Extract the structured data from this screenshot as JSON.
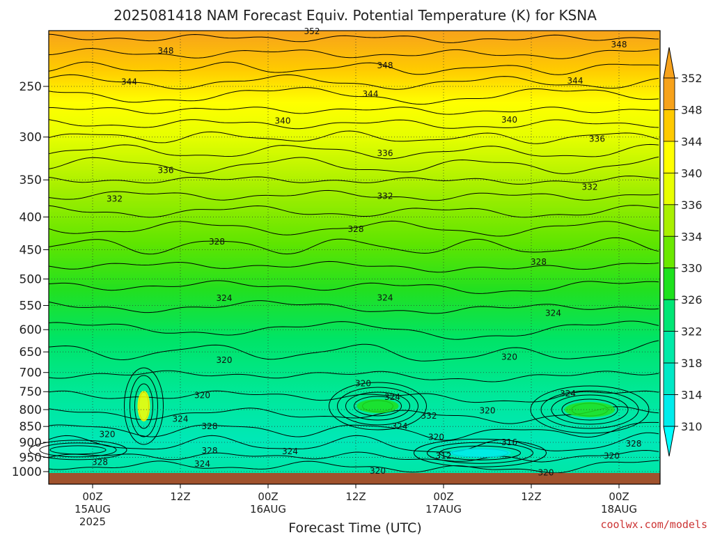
{
  "chart_data": {
    "type": "contour",
    "title": "2025081418 NAM Forecast Equiv. Potential Temperature (K) for KSNA",
    "xlabel": "Forecast Time (UTC)",
    "ylabel": "",
    "credit": "coolwx.com/models",
    "y_axis": {
      "scale": "log-pressure",
      "range": [
        1000,
        200
      ],
      "ticks": [
        "250",
        "300",
        "350",
        "400",
        "450",
        "500",
        "550",
        "600",
        "650",
        "700",
        "750",
        "800",
        "850",
        "900",
        "950",
        "1000"
      ]
    },
    "x_axis": {
      "range_hours": [
        -4,
        80
      ],
      "ticks": [
        {
          "hour": 0,
          "line1": "00Z",
          "line2": "15AUG",
          "line3": "2025"
        },
        {
          "hour": 12,
          "line1": "12Z",
          "line2": "",
          "line3": ""
        },
        {
          "hour": 24,
          "line1": "00Z",
          "line2": "16AUG",
          "line3": ""
        },
        {
          "hour": 36,
          "line1": "12Z",
          "line2": "",
          "line3": ""
        },
        {
          "hour": 48,
          "line1": "00Z",
          "line2": "17AUG",
          "line3": ""
        },
        {
          "hour": 60,
          "line1": "12Z",
          "line2": "",
          "line3": ""
        },
        {
          "hour": 72,
          "line1": "00Z",
          "line2": "18AUG",
          "line3": ""
        }
      ]
    },
    "colorbar": {
      "labels": [
        "352",
        "348",
        "344",
        "340",
        "336",
        "334",
        "330",
        "326",
        "322",
        "318",
        "314",
        "310"
      ],
      "colors": [
        "#f7a21b",
        "#ffca00",
        "#ffff00",
        "#e8ff00",
        "#a9f000",
        "#6be800",
        "#1ee11d",
        "#00e675",
        "#00eaa8",
        "#00e8c6",
        "#00ecec",
        "#00ffff"
      ]
    },
    "contour_labels": [
      {
        "text": "352",
        "hour": 30,
        "p": 205
      },
      {
        "text": "348",
        "hour": 10,
        "p": 220
      },
      {
        "text": "348",
        "hour": 40,
        "p": 232
      },
      {
        "text": "348",
        "hour": 72,
        "p": 215
      },
      {
        "text": "344",
        "hour": 5,
        "p": 246
      },
      {
        "text": "344",
        "hour": 38,
        "p": 257
      },
      {
        "text": "344",
        "hour": 66,
        "p": 245
      },
      {
        "text": "340",
        "hour": 26,
        "p": 283
      },
      {
        "text": "340",
        "hour": 57,
        "p": 282
      },
      {
        "text": "336",
        "hour": 10,
        "p": 338
      },
      {
        "text": "336",
        "hour": 40,
        "p": 318
      },
      {
        "text": "336",
        "hour": 69,
        "p": 302
      },
      {
        "text": "332",
        "hour": 3,
        "p": 375
      },
      {
        "text": "332",
        "hour": 40,
        "p": 371
      },
      {
        "text": "332",
        "hour": 68,
        "p": 359
      },
      {
        "text": "328",
        "hour": 17,
        "p": 437
      },
      {
        "text": "328",
        "hour": 36,
        "p": 418
      },
      {
        "text": "328",
        "hour": 61,
        "p": 470
      },
      {
        "text": "324",
        "hour": 18,
        "p": 536
      },
      {
        "text": "324",
        "hour": 40,
        "p": 535
      },
      {
        "text": "324",
        "hour": 63,
        "p": 565
      },
      {
        "text": "320",
        "hour": 18,
        "p": 670
      },
      {
        "text": "320",
        "hour": 57,
        "p": 662
      },
      {
        "text": "320",
        "hour": 37,
        "p": 728
      },
      {
        "text": "324",
        "hour": 41,
        "p": 765
      },
      {
        "text": "324",
        "hour": 65,
        "p": 755
      },
      {
        "text": "320",
        "hour": 15,
        "p": 760
      },
      {
        "text": "320",
        "hour": 54,
        "p": 803
      },
      {
        "text": "332",
        "hour": 46,
        "p": 818
      },
      {
        "text": "324",
        "hour": 12,
        "p": 828
      },
      {
        "text": "328",
        "hour": 16,
        "p": 850
      },
      {
        "text": "324",
        "hour": 42,
        "p": 850
      },
      {
        "text": "320",
        "hour": 2,
        "p": 875
      },
      {
        "text": "320",
        "hour": 47,
        "p": 883
      },
      {
        "text": "316",
        "hour": 57,
        "p": 900
      },
      {
        "text": "328",
        "hour": 74,
        "p": 905
      },
      {
        "text": "328",
        "hour": 16,
        "p": 928
      },
      {
        "text": "324",
        "hour": 27,
        "p": 930
      },
      {
        "text": "312",
        "hour": 48,
        "p": 945
      },
      {
        "text": "320",
        "hour": 71,
        "p": 945
      },
      {
        "text": "328",
        "hour": 1,
        "p": 967
      },
      {
        "text": "324",
        "hour": 15,
        "p": 973
      },
      {
        "text": "320",
        "hour": 39,
        "p": 997
      },
      {
        "text": "320",
        "hour": 62,
        "p": 1004
      }
    ]
  }
}
